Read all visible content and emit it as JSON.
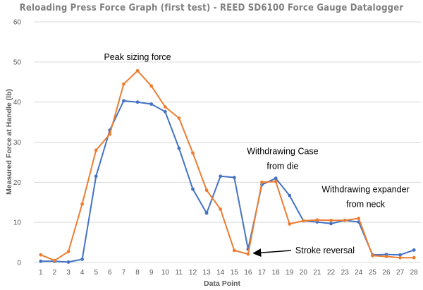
{
  "chart_data": {
    "type": "line",
    "title": "Reloading Press Force Graph (first test) - REED SD6100 Force Gauge Datalogger",
    "xlabel": "Data Point",
    "ylabel": "Measured Force at Handle (lb)",
    "ylim": [
      0,
      60
    ],
    "yticks": [
      0,
      10,
      20,
      30,
      40,
      50,
      60
    ],
    "grid": true,
    "categories": [
      "1",
      "2",
      "3",
      "4",
      "5",
      "6",
      "7",
      "8",
      "9",
      "10",
      "11",
      "12",
      "13",
      "14",
      "15",
      "16",
      "17",
      "18",
      "19",
      "20",
      "21",
      "22",
      "23",
      "24",
      "25",
      "26",
      "27",
      "28"
    ],
    "series": [
      {
        "color": "#4472c4",
        "values": [
          0.3,
          0.3,
          0.1,
          0.8,
          21.5,
          33.0,
          40.3,
          40.0,
          39.5,
          37.6,
          28.5,
          18.3,
          12.3,
          21.5,
          21.2,
          3.3,
          19.4,
          21.0,
          16.7,
          10.4,
          10.1,
          9.7,
          10.5,
          10.1,
          1.9,
          2.0,
          1.9,
          3.1
        ]
      },
      {
        "color": "#ed7d31",
        "values": [
          1.9,
          0.5,
          2.7,
          14.6,
          28.0,
          32.0,
          44.5,
          47.8,
          44.0,
          38.8,
          36.0,
          27.3,
          18.0,
          13.3,
          3.0,
          2.1,
          20.0,
          20.2,
          9.6,
          10.4,
          10.6,
          10.5,
          10.5,
          11.0,
          1.7,
          1.5,
          1.2,
          1.2
        ]
      }
    ],
    "annotations": [
      {
        "lines": [
          "Peak sizing force"
        ],
        "x": 8,
        "y": 50.5
      },
      {
        "lines": [
          "Withdrawing Case",
          "from die"
        ],
        "x": 18.5,
        "y": 27
      },
      {
        "lines": [
          "Withdrawing expander",
          "from neck"
        ],
        "x": 24.5,
        "y": 17.5
      },
      {
        "lines": [
          "Stroke reversal"
        ],
        "x": 18.5,
        "y": 3,
        "arrow_to": [
          16.3,
          2.3
        ]
      }
    ]
  }
}
